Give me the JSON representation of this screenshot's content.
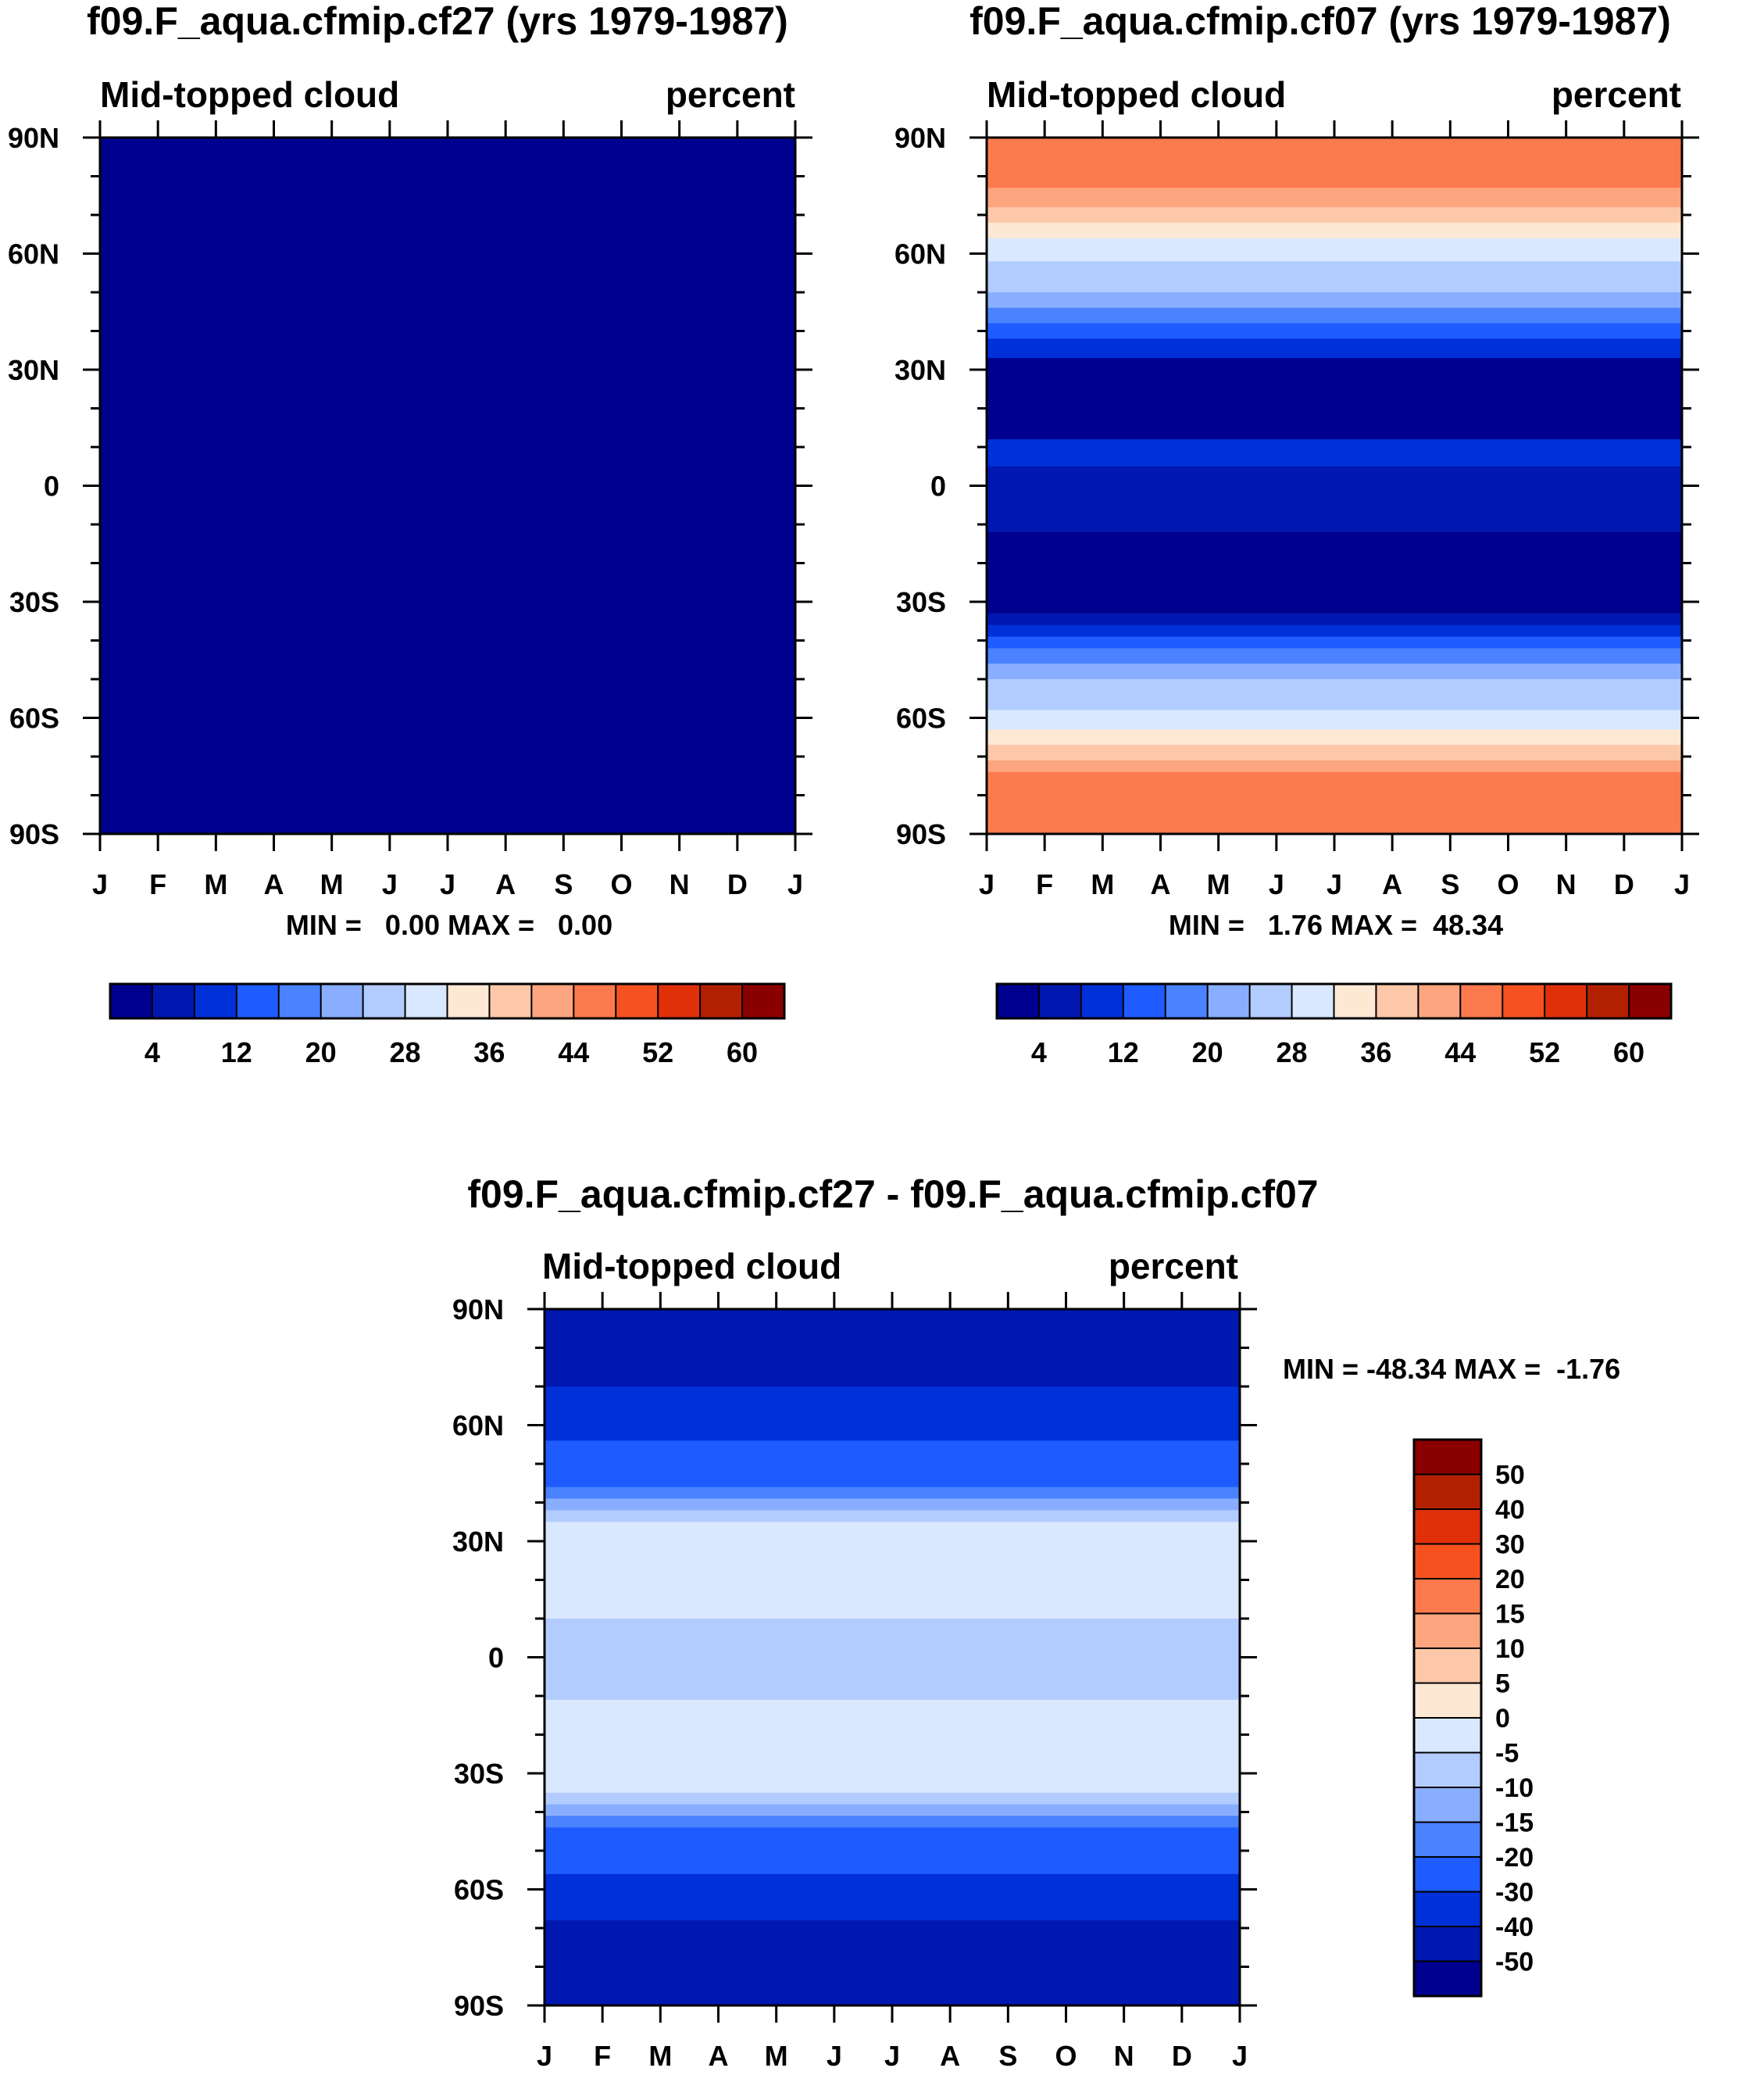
{
  "months": [
    "J",
    "F",
    "M",
    "A",
    "M",
    "J",
    "J",
    "A",
    "S",
    "O",
    "N",
    "D",
    "J"
  ],
  "lat_labels": [
    "90N",
    "60N",
    "30N",
    "0",
    "30S",
    "60S",
    "90S"
  ],
  "colorbar_main": {
    "labels": [
      "4",
      "12",
      "20",
      "28",
      "36",
      "44",
      "52",
      "60"
    ],
    "colors": [
      "#00008f",
      "#0018b0",
      "#0030d8",
      "#1e5cff",
      "#4a82ff",
      "#8aaeff",
      "#b3ccff",
      "#d9e8ff",
      "#fde8d4",
      "#fdc8aa",
      "#fca57f",
      "#fc7a4d",
      "#f6521f",
      "#e0300a",
      "#b32000",
      "#8a0000"
    ]
  },
  "colorbar_diff": {
    "labels": [
      "50",
      "40",
      "30",
      "20",
      "15",
      "10",
      "5",
      "0",
      "-5",
      "-10",
      "-15",
      "-20",
      "-30",
      "-40",
      "-50"
    ],
    "colors": [
      "#8a0000",
      "#b32000",
      "#e0300a",
      "#f6521f",
      "#fc7a4d",
      "#fca57f",
      "#fdc8aa",
      "#fde8d4",
      "#d9e8ff",
      "#b3ccff",
      "#8aaeff",
      "#4a82ff",
      "#1e5cff",
      "#0030d8",
      "#0018b0",
      "#00008f"
    ]
  },
  "panels": [
    {
      "title": "f09.F_aqua.cfmip.cf27 (yrs 1979-1987)",
      "left_label": "Mid-topped cloud",
      "right_label": "percent",
      "stats": "MIN =   0.00 MAX =   0.00"
    },
    {
      "title": "f09.F_aqua.cfmip.cf07 (yrs 1979-1987)",
      "left_label": "Mid-topped cloud",
      "right_label": "percent",
      "stats": "MIN =   1.76 MAX =  48.34"
    },
    {
      "title": "f09.F_aqua.cfmip.cf27 - f09.F_aqua.cfmip.cf07",
      "left_label": "Mid-topped cloud",
      "right_label": "percent",
      "stats": "MIN = -48.34 MAX =  -1.76"
    }
  ],
  "chart_data": [
    {
      "type": "heatmap",
      "title": "f09.F_aqua.cfmip.cf27 (yrs 1979-1987)",
      "variable": "Mid-topped cloud",
      "units": "percent",
      "x": [
        "J",
        "F",
        "M",
        "A",
        "M",
        "J",
        "J",
        "A",
        "S",
        "O",
        "N",
        "D",
        "J"
      ],
      "y_range": [
        -90,
        90
      ],
      "min": 0.0,
      "max": 0.0,
      "bands": [
        {
          "lat_from": -90,
          "lat_to": 90,
          "value": 0
        }
      ]
    },
    {
      "type": "heatmap",
      "title": "f09.F_aqua.cfmip.cf07 (yrs 1979-1987)",
      "variable": "Mid-topped cloud",
      "units": "percent",
      "x": [
        "J",
        "F",
        "M",
        "A",
        "M",
        "J",
        "J",
        "A",
        "S",
        "O",
        "N",
        "D",
        "J"
      ],
      "y_range": [
        -90,
        90
      ],
      "min": 1.76,
      "max": 48.34,
      "bands": [
        {
          "lat_from": 90,
          "lat_to": 77,
          "value": 46
        },
        {
          "lat_from": 77,
          "lat_to": 72,
          "value": 42
        },
        {
          "lat_from": 72,
          "lat_to": 68,
          "value": 38
        },
        {
          "lat_from": 68,
          "lat_to": 64,
          "value": 34
        },
        {
          "lat_from": 64,
          "lat_to": 58,
          "value": 30
        },
        {
          "lat_from": 58,
          "lat_to": 50,
          "value": 26
        },
        {
          "lat_from": 50,
          "lat_to": 46,
          "value": 22
        },
        {
          "lat_from": 46,
          "lat_to": 42,
          "value": 18
        },
        {
          "lat_from": 42,
          "lat_to": 38,
          "value": 14
        },
        {
          "lat_from": 38,
          "lat_to": 33,
          "value": 10
        },
        {
          "lat_from": 33,
          "lat_to": 12,
          "value": 2
        },
        {
          "lat_from": 12,
          "lat_to": 5,
          "value": 9
        },
        {
          "lat_from": 5,
          "lat_to": -12,
          "value": 6
        },
        {
          "lat_from": -12,
          "lat_to": -33,
          "value": 2
        },
        {
          "lat_from": -33,
          "lat_to": -36,
          "value": 6
        },
        {
          "lat_from": -36,
          "lat_to": -39,
          "value": 10
        },
        {
          "lat_from": -39,
          "lat_to": -42,
          "value": 14
        },
        {
          "lat_from": -42,
          "lat_to": -46,
          "value": 18
        },
        {
          "lat_from": -46,
          "lat_to": -50,
          "value": 22
        },
        {
          "lat_from": -50,
          "lat_to": -58,
          "value": 26
        },
        {
          "lat_from": -58,
          "lat_to": -63,
          "value": 30
        },
        {
          "lat_from": -63,
          "lat_to": -67,
          "value": 34
        },
        {
          "lat_from": -67,
          "lat_to": -71,
          "value": 38
        },
        {
          "lat_from": -71,
          "lat_to": -74,
          "value": 42
        },
        {
          "lat_from": -74,
          "lat_to": -90,
          "value": 46
        }
      ]
    },
    {
      "type": "heatmap",
      "title": "f09.F_aqua.cfmip.cf27 - f09.F_aqua.cfmip.cf07",
      "variable": "Mid-topped cloud",
      "units": "percent",
      "x": [
        "J",
        "F",
        "M",
        "A",
        "M",
        "J",
        "J",
        "A",
        "S",
        "O",
        "N",
        "D",
        "J"
      ],
      "y_range": [
        -90,
        90
      ],
      "min": -48.34,
      "max": -1.76,
      "bands": [
        {
          "lat_from": 90,
          "lat_to": 70,
          "value": -45
        },
        {
          "lat_from": 70,
          "lat_to": 56,
          "value": -35
        },
        {
          "lat_from": 56,
          "lat_to": 44,
          "value": -25
        },
        {
          "lat_from": 44,
          "lat_to": 41,
          "value": -18
        },
        {
          "lat_from": 41,
          "lat_to": 38,
          "value": -12
        },
        {
          "lat_from": 38,
          "lat_to": 35,
          "value": -8
        },
        {
          "lat_from": 35,
          "lat_to": 10,
          "value": -3
        },
        {
          "lat_from": 10,
          "lat_to": -11,
          "value": -7
        },
        {
          "lat_from": -11,
          "lat_to": -35,
          "value": -3
        },
        {
          "lat_from": -35,
          "lat_to": -38,
          "value": -8
        },
        {
          "lat_from": -38,
          "lat_to": -41,
          "value": -12
        },
        {
          "lat_from": -41,
          "lat_to": -44,
          "value": -18
        },
        {
          "lat_from": -44,
          "lat_to": -56,
          "value": -25
        },
        {
          "lat_from": -56,
          "lat_to": -68,
          "value": -35
        },
        {
          "lat_from": -68,
          "lat_to": -90,
          "value": -45
        }
      ]
    }
  ]
}
